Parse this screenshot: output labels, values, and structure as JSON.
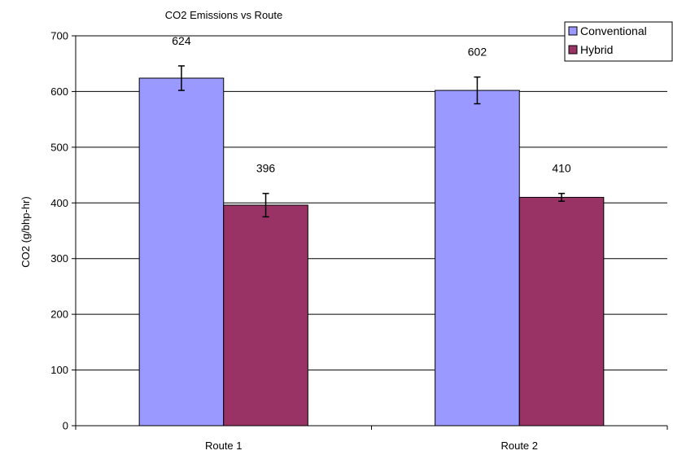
{
  "chart_data": {
    "type": "bar",
    "title": "CO2 Emissions vs Route",
    "xlabel": "",
    "ylabel": "CO2 (g/bhp-hr)",
    "categories": [
      "Route 1",
      "Route 2"
    ],
    "series": [
      {
        "name": "Conventional",
        "color": "#9999ff",
        "values": [
          624,
          602
        ],
        "error": [
          22,
          24
        ],
        "labels": [
          "624",
          "602"
        ]
      },
      {
        "name": "Hybrid",
        "color": "#993366",
        "values": [
          396,
          410
        ],
        "error": [
          21,
          7
        ],
        "labels": [
          "396",
          "410"
        ]
      }
    ],
    "ylim": [
      0,
      700
    ],
    "yticks": [
      0,
      100,
      200,
      300,
      400,
      500,
      600,
      700
    ],
    "grid": true,
    "legend": "top-right"
  }
}
